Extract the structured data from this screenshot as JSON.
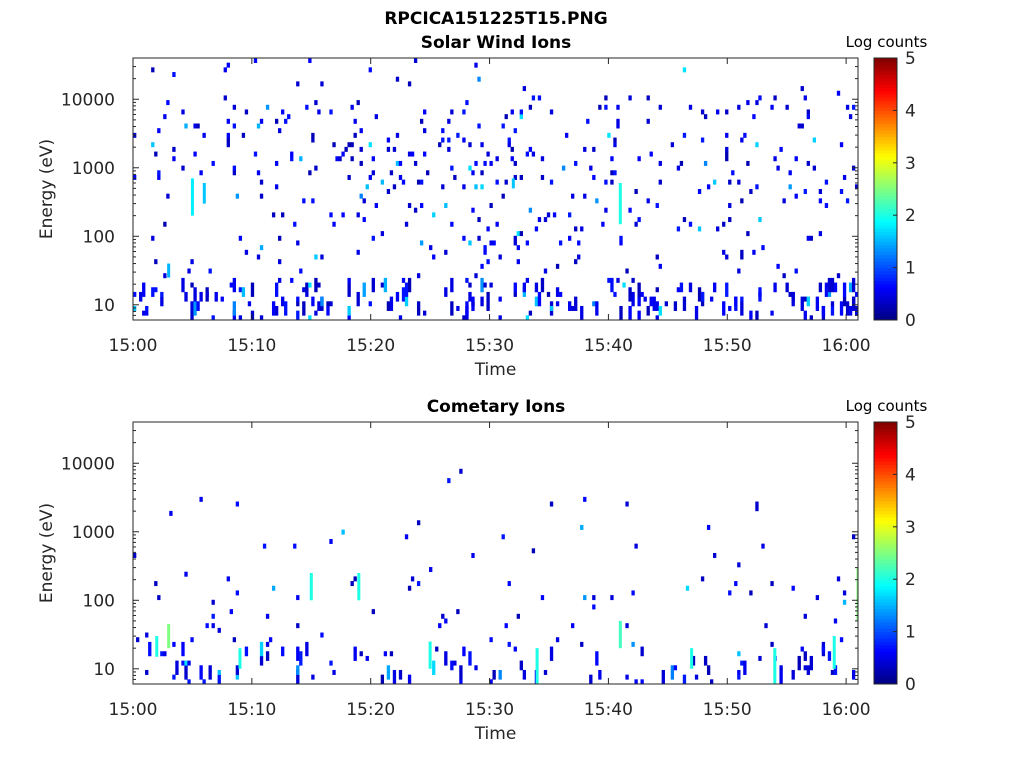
{
  "figure": {
    "title": "RPCICA151225T15.PNG"
  },
  "chart_data": [
    {
      "type": "heatmap",
      "title": "Solar Wind Ions",
      "xlabel": "Time",
      "ylabel": "Energy (eV)",
      "x_ticks": [
        "15:00",
        "15:10",
        "15:20",
        "15:30",
        "15:40",
        "15:50",
        "16:00"
      ],
      "xlim": [
        "15:00",
        "16:01"
      ],
      "y_scale": "log",
      "y_ticks": [
        10,
        100,
        1000,
        10000
      ],
      "y_tick_labels": [
        "10",
        "100",
        "1000",
        "10000"
      ],
      "ylim": [
        6,
        40000
      ],
      "colorbar": {
        "label": "Log counts",
        "range": [
          0,
          5
        ],
        "ticks": [
          "0",
          "1",
          "2",
          "3",
          "4",
          "5"
        ],
        "colormap": "jet"
      },
      "seed": 151225,
      "features": [
        {
          "time": "15:05",
          "energy_range": [
            200,
            700
          ],
          "log_counts": 1.8
        },
        {
          "time": "15:06",
          "energy_range": [
            300,
            600
          ],
          "log_counts": 1.6
        },
        {
          "time": "15:03",
          "energy_range": [
            25,
            40
          ],
          "log_counts": 1.5
        },
        {
          "time": "15:32",
          "energy_range": [
            500,
            700
          ],
          "log_counts": 1.6
        },
        {
          "time": "15:41",
          "energy_range": [
            150,
            600
          ],
          "log_counts": 2.0
        }
      ]
    },
    {
      "type": "heatmap",
      "title": "Cometary Ions",
      "xlabel": "Time",
      "ylabel": "Energy (eV)",
      "x_ticks": [
        "15:00",
        "15:10",
        "15:20",
        "15:30",
        "15:40",
        "15:50",
        "16:00"
      ],
      "xlim": [
        "15:00",
        "16:01"
      ],
      "y_scale": "log",
      "y_ticks": [
        10,
        100,
        1000,
        10000
      ],
      "y_tick_labels": [
        "10",
        "100",
        "1000",
        "10000"
      ],
      "ylim": [
        6,
        40000
      ],
      "colorbar": {
        "label": "Log counts",
        "range": [
          0,
          5
        ],
        "ticks": [
          "0",
          "1",
          "2",
          "3",
          "4",
          "5"
        ],
        "colormap": "jet"
      },
      "seed": 922017,
      "features": [
        {
          "time": "15:03",
          "energy_range": [
            20,
            45
          ],
          "log_counts": 2.5
        },
        {
          "time": "15:02",
          "energy_range": [
            15,
            30
          ],
          "log_counts": 2.0
        },
        {
          "time": "15:09",
          "energy_range": [
            10,
            20
          ],
          "log_counts": 2.0
        },
        {
          "time": "15:15",
          "energy_range": [
            100,
            250
          ],
          "log_counts": 2.0
        },
        {
          "time": "15:19",
          "energy_range": [
            100,
            250
          ],
          "log_counts": 2.0
        },
        {
          "time": "15:25",
          "energy_range": [
            10,
            25
          ],
          "log_counts": 2.0
        },
        {
          "time": "15:34",
          "energy_range": [
            6,
            20
          ],
          "log_counts": 2.0
        },
        {
          "time": "15:41",
          "energy_range": [
            20,
            50
          ],
          "log_counts": 2.2
        },
        {
          "time": "15:47",
          "energy_range": [
            10,
            20
          ],
          "log_counts": 2.0
        },
        {
          "time": "15:54",
          "energy_range": [
            6,
            20
          ],
          "log_counts": 2.0
        },
        {
          "time": "15:59",
          "energy_range": [
            10,
            30
          ],
          "log_counts": 2.0
        },
        {
          "time": "16:01",
          "energy_range": [
            50,
            300
          ],
          "log_counts": 2.5
        }
      ]
    }
  ]
}
